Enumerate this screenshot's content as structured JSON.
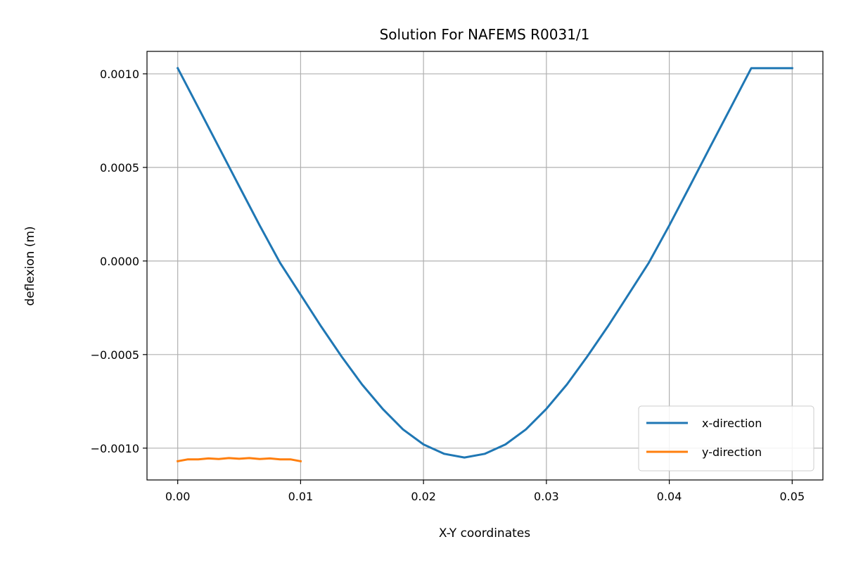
{
  "chart_data": {
    "type": "line",
    "title": "Solution For NAFEMS R0031/1",
    "xlabel": "X-Y coordinates",
    "ylabel": "deflexion (m)",
    "xlim": [
      -0.0025,
      0.0525
    ],
    "ylim": [
      -0.00117,
      0.00112
    ],
    "x_ticks": [
      0.0,
      0.01,
      0.02,
      0.03,
      0.04,
      0.05
    ],
    "x_tick_labels": [
      "0.00",
      "0.01",
      "0.02",
      "0.03",
      "0.04",
      "0.05"
    ],
    "y_ticks": [
      0.001,
      0.0005,
      0.0,
      -0.0005,
      -0.001
    ],
    "y_tick_labels": [
      "0.0010",
      "0.0005",
      "0.0000",
      "−0.0005",
      "−0.0010"
    ],
    "grid": true,
    "legend_position": "lower right",
    "series": [
      {
        "name": "x-direction",
        "color": "#1f77b4",
        "x": [
          0.0,
          0.00167,
          0.00333,
          0.005,
          0.00667,
          0.00833,
          0.01,
          0.01167,
          0.01333,
          0.015,
          0.01667,
          0.01833,
          0.02,
          0.02167,
          0.02333,
          0.025,
          0.02667,
          0.02833,
          0.03,
          0.03167,
          0.03333,
          0.035,
          0.03667,
          0.03833,
          0.04,
          0.04167,
          0.04333,
          0.045,
          0.04667,
          0.04833,
          0.05
        ],
        "y": [
          0.00103,
          0.00082,
          0.00061,
          0.0004,
          0.00019,
          -1e-05,
          -0.00018,
          -0.00035,
          -0.00051,
          -0.00066,
          -0.00079,
          -0.0009,
          -0.00098,
          -0.00103,
          -0.00105,
          -0.00103,
          -0.00098,
          -0.0009,
          -0.00079,
          -0.00066,
          -0.00051,
          -0.00035,
          -0.00018,
          -1e-05,
          0.00019,
          0.0004,
          0.00061,
          0.00082,
          0.00103,
          0.00103,
          0.00103
        ]
      },
      {
        "name": "y-direction",
        "color": "#ff7f0e",
        "x": [
          0.0,
          0.00083,
          0.00167,
          0.0025,
          0.00333,
          0.00417,
          0.005,
          0.00583,
          0.00667,
          0.0075,
          0.00833,
          0.00917,
          0.01
        ],
        "y": [
          -0.00107,
          -0.00106,
          -0.00106,
          -0.001055,
          -0.001058,
          -0.001053,
          -0.001057,
          -0.001053,
          -0.001058,
          -0.001055,
          -0.00106,
          -0.00106,
          -0.00107
        ]
      }
    ]
  }
}
